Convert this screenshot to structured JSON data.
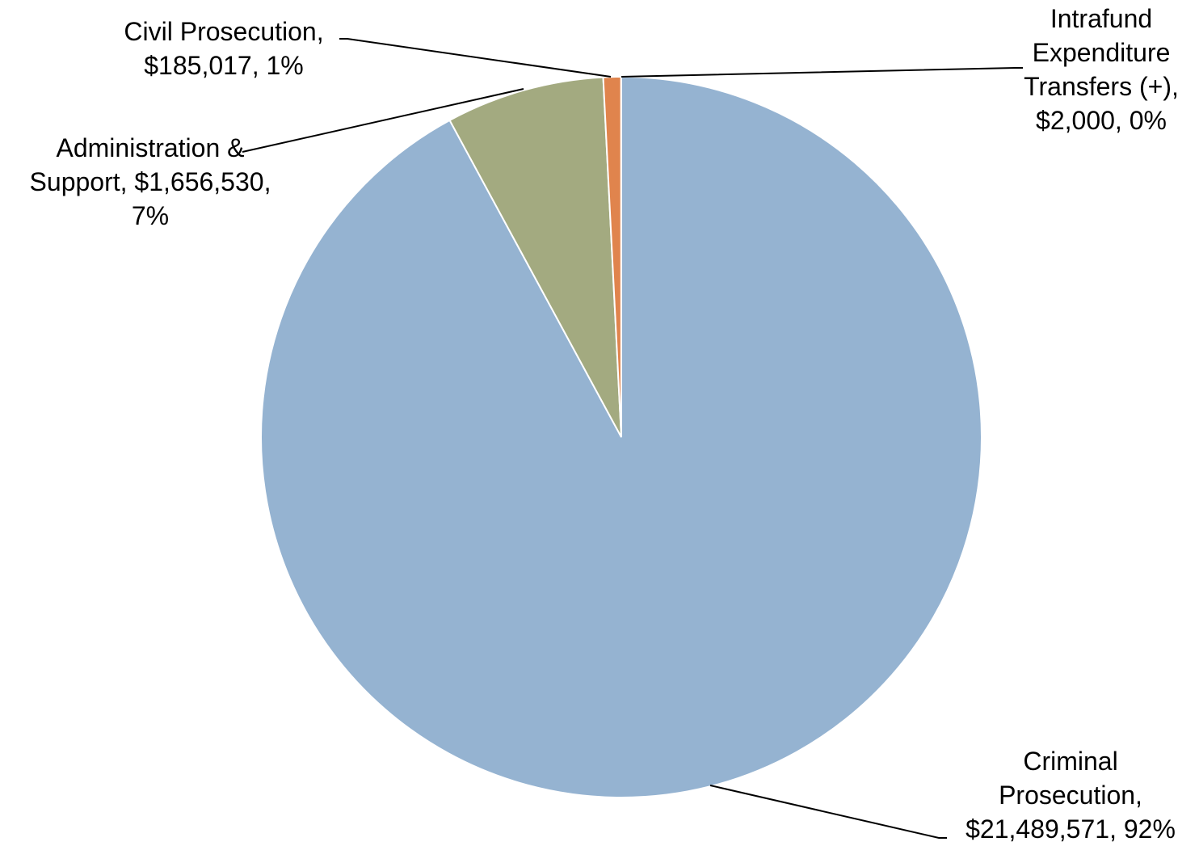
{
  "chart_data": {
    "type": "pie",
    "title": "",
    "start_angle_deg": 0,
    "direction": "clockwise",
    "slices": [
      {
        "name": "Criminal Prosecution",
        "value": 21489571,
        "percent_label": "92%",
        "color": "#95b3d1",
        "label_lines": [
          "Criminal",
          "Prosecution,",
          "$21,489,571, 92%"
        ]
      },
      {
        "name": "Administration & Support",
        "value": 1656530,
        "percent_label": "7%",
        "color": "#a3aa80",
        "label_lines": [
          "Administration &",
          "Support, $1,656,530,",
          "7%"
        ]
      },
      {
        "name": "Civil Prosecution",
        "value": 185017,
        "percent_label": "1%",
        "color": "#e0844d",
        "label_lines": [
          "Civil Prosecution,",
          "$185,017, 1%"
        ]
      },
      {
        "name": "Intrafund Expenditure Transfers (+)",
        "value": 2000,
        "percent_label": "0%",
        "color": "#4f81bd",
        "label_lines": [
          "Intrafund",
          "Expenditure",
          "Transfers (+),",
          "$2,000, 0%"
        ]
      }
    ]
  }
}
